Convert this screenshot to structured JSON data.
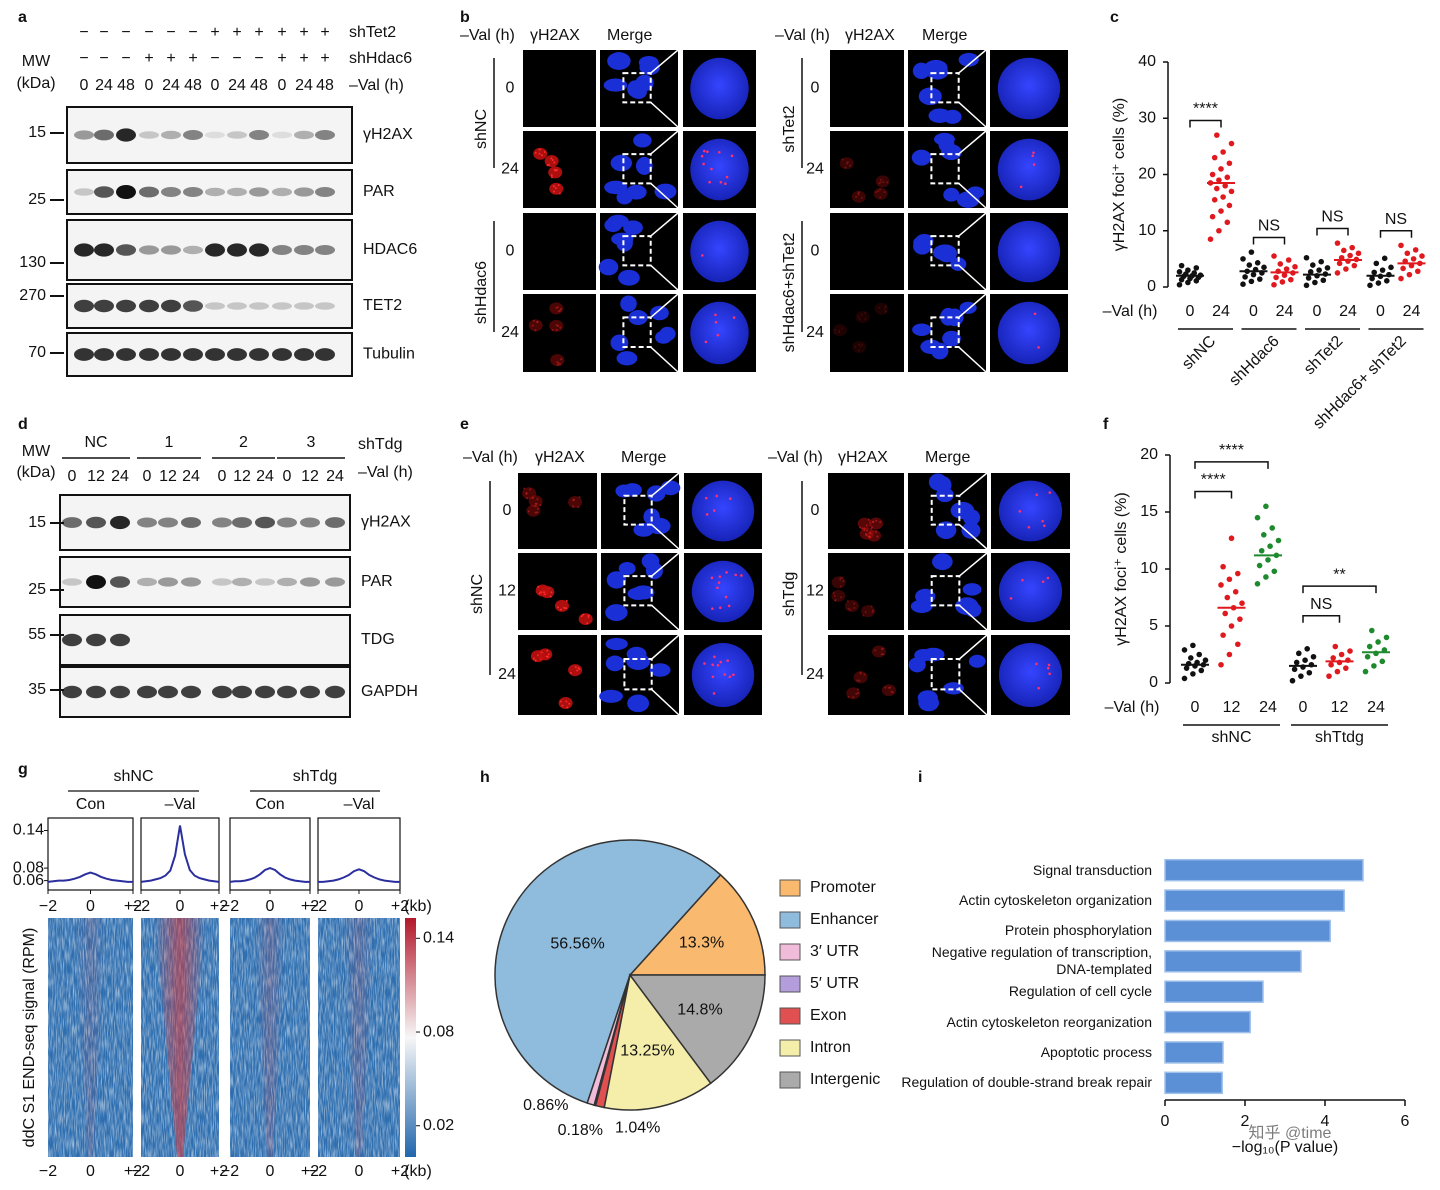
{
  "panel_labels": [
    "a",
    "b",
    "c",
    "d",
    "e",
    "f",
    "g",
    "h",
    "i"
  ],
  "blot_a": {
    "mw": "MW",
    "kda": "(kDa)",
    "rows": [
      {
        "label": "shTet2",
        "marks": [
          "−",
          "−",
          "−",
          "−",
          "−",
          "−",
          "+",
          "+",
          "+",
          "+",
          "+",
          "+"
        ]
      },
      {
        "label": "shHdac6",
        "marks": [
          "−",
          "−",
          "−",
          "+",
          "+",
          "+",
          "−",
          "−",
          "−",
          "+",
          "+",
          "+"
        ]
      },
      {
        "label": "–Val (h)",
        "marks": [
          "0",
          "24",
          "48",
          "0",
          "24",
          "48",
          "0",
          "24",
          "48",
          "0",
          "24",
          "48"
        ]
      }
    ],
    "bands": [
      {
        "name": "γH2AX",
        "mw": "15"
      },
      {
        "name": "PAR",
        "mw": "25"
      },
      {
        "name": "HDAC6",
        "mw": "130"
      },
      {
        "name": "TET2",
        "mw": "270"
      },
      {
        "name": "Tubulin",
        "mw": "70"
      }
    ]
  },
  "blot_d": {
    "mw": "MW",
    "kda": "(kDa)",
    "group_label": "shTdg",
    "groups": [
      "NC",
      "1",
      "2",
      "3"
    ],
    "time_label": "–Val (h)",
    "times": [
      "0",
      "12",
      "24",
      "0",
      "12",
      "24",
      "0",
      "12",
      "24",
      "0",
      "12",
      "24"
    ],
    "bands": [
      {
        "name": "γH2AX",
        "mw": "15"
      },
      {
        "name": "PAR",
        "mw": "25"
      },
      {
        "name": "TDG",
        "mw": "55"
      },
      {
        "name": "GAPDH",
        "mw": "35"
      }
    ]
  },
  "imaging_b": {
    "panels": [
      {
        "headers": [
          "–Val (h)",
          "γH2AX",
          "Merge"
        ],
        "groups": [
          {
            "label": "shNC",
            "times": [
              "0",
              "24"
            ]
          },
          {
            "label": "shHdac6",
            "times": [
              "0",
              "24"
            ]
          }
        ]
      },
      {
        "headers": [
          "–Val (h)",
          "γH2AX",
          "Merge"
        ],
        "groups": [
          {
            "label": "shTet2",
            "times": [
              "0",
              "24"
            ]
          },
          {
            "label": "shHdac6+shTet2",
            "times": [
              "0",
              "24"
            ]
          }
        ]
      }
    ]
  },
  "imaging_e": {
    "panels": [
      {
        "headers": [
          "–Val (h)",
          "γH2AX",
          "Merge"
        ],
        "groups": [
          {
            "label": "shNC",
            "times": [
              "0",
              "12",
              "24"
            ]
          }
        ]
      },
      {
        "headers": [
          "–Val (h)",
          "γH2AX",
          "Merge"
        ],
        "groups": [
          {
            "label": "shTdg",
            "times": [
              "0",
              "12",
              "24"
            ]
          }
        ]
      }
    ]
  },
  "chart_data": [
    {
      "type": "strip",
      "ylabel": "γH2AX foci⁺ cells (%)",
      "xlabel": "–Val (h)",
      "ylim": [
        0,
        40
      ],
      "yticks": [
        0,
        10,
        20,
        30,
        40
      ],
      "categories": [
        "shNC",
        "shHdac6",
        "shTet2",
        "shHdac6+ shTet2"
      ],
      "conditions": [
        "0",
        "24"
      ],
      "colors": [
        "#111111",
        "#e0191f"
      ],
      "means": [
        [
          2,
          18.5
        ],
        [
          2.8,
          2.6
        ],
        [
          2.2,
          4.8
        ],
        [
          2,
          4.2
        ]
      ],
      "points": [
        [
          [
            0.4,
            0.8,
            1.1,
            1.3,
            1.5,
            1.7,
            1.9,
            2.0,
            2.1,
            2.3,
            2.5,
            2.7,
            3.0,
            3.4,
            3.8
          ],
          [
            8.5,
            10,
            11.5,
            12.5,
            13.5,
            14.5,
            15.5,
            16,
            17,
            17.5,
            18,
            18.5,
            19,
            19.5,
            20,
            21,
            22,
            23,
            24,
            25.5,
            27
          ]
        ],
        [
          [
            0.5,
            1,
            1.4,
            1.8,
            2.2,
            2.5,
            2.8,
            3.1,
            3.5,
            3.9,
            4.3,
            5,
            6.2
          ],
          [
            0.4,
            0.9,
            1.3,
            1.7,
            2.1,
            2.5,
            2.8,
            3.2,
            3.6,
            4.1,
            4.8,
            5.5
          ]
        ],
        [
          [
            0.3,
            0.8,
            1.2,
            1.6,
            2,
            2.3,
            2.7,
            3,
            3.4,
            3.9,
            4.5,
            5.2
          ],
          [
            2.5,
            3.2,
            3.8,
            4.2,
            4.6,
            4.9,
            5.2,
            5.6,
            6,
            6.5,
            7,
            7.8
          ]
        ],
        [
          [
            0.3,
            0.7,
            1.1,
            1.5,
            1.9,
            2.2,
            2.6,
            3,
            3.5,
            4.2,
            5.1
          ],
          [
            1.5,
            2.2,
            2.8,
            3.3,
            3.8,
            4.2,
            4.6,
            5,
            5.5,
            6,
            6.6,
            7.4
          ]
        ]
      ],
      "annotations": [
        [
          "****"
        ],
        [
          "NS"
        ],
        [
          "NS"
        ],
        [
          "NS"
        ]
      ]
    },
    {
      "type": "strip",
      "ylabel": "γH2AX foci⁺ cells (%)",
      "xlabel": "–Val (h)",
      "ylim": [
        0,
        20
      ],
      "yticks": [
        0,
        5,
        10,
        15,
        20
      ],
      "categories": [
        "shNC",
        "shTtdg"
      ],
      "conditions": [
        "0",
        "12",
        "24"
      ],
      "colors": [
        "#111111",
        "#e0191f",
        "#1e8a2e"
      ],
      "means": [
        [
          1.6,
          6.6,
          11.2
        ],
        [
          1.5,
          1.9,
          2.7
        ]
      ],
      "points": [
        [
          [
            0.4,
            0.8,
            1.1,
            1.3,
            1.5,
            1.6,
            1.7,
            1.8,
            2.0,
            2.2,
            2.5,
            2.9,
            3.3
          ],
          [
            1.6,
            2.5,
            3.4,
            4.2,
            5,
            5.6,
            6.1,
            6.6,
            7,
            7.5,
            8,
            8.6,
            9.1,
            9.6,
            10.2,
            12.7
          ],
          [
            8.7,
            9.3,
            9.8,
            10.3,
            10.8,
            11.2,
            11.6,
            12,
            12.5,
            13,
            13.6,
            14.5,
            15.5
          ]
        ],
        [
          [
            0.2,
            0.6,
            0.9,
            1.2,
            1.4,
            1.6,
            1.8,
            2,
            2.3,
            2.6,
            3
          ],
          [
            0.6,
            1,
            1.3,
            1.6,
            1.8,
            2,
            2.2,
            2.5,
            2.8,
            3.2
          ],
          [
            1,
            1.5,
            1.9,
            2.3,
            2.6,
            2.9,
            3.2,
            3.6,
            4,
            4.6
          ]
        ]
      ],
      "annotations": [
        [
          "****",
          "****"
        ],
        [
          "NS",
          "**"
        ]
      ]
    },
    {
      "type": "line",
      "groups": [
        "shNC",
        "shTdg"
      ],
      "x": [
        -2,
        -1.75,
        -1.5,
        -1.25,
        -1,
        -0.75,
        -0.5,
        -0.25,
        0,
        0.25,
        0.5,
        0.75,
        1,
        1.25,
        1.5,
        1.75,
        2
      ],
      "xlim": [
        -2,
        2
      ],
      "xticks": [
        {
          "value": -2,
          "label": "−2"
        },
        0,
        {
          "value": 2,
          "label": "+2"
        }
      ],
      "xunit": "(kb)",
      "ylim": [
        0.045,
        0.16
      ],
      "yticks": [
        0.06,
        0.08,
        0.14
      ],
      "color": "#2b2f9e",
      "series": [
        {
          "name": "Con",
          "values": [
            0.058,
            0.059,
            0.06,
            0.06,
            0.061,
            0.063,
            0.066,
            0.07,
            0.073,
            0.07,
            0.066,
            0.063,
            0.061,
            0.06,
            0.059,
            0.058,
            0.058
          ]
        },
        {
          "name": "–Val",
          "values": [
            0.058,
            0.059,
            0.06,
            0.062,
            0.064,
            0.068,
            0.076,
            0.1,
            0.148,
            0.102,
            0.077,
            0.068,
            0.064,
            0.062,
            0.06,
            0.059,
            0.058
          ]
        },
        {
          "name": "Con",
          "values": [
            0.058,
            0.059,
            0.059,
            0.06,
            0.062,
            0.065,
            0.07,
            0.077,
            0.08,
            0.077,
            0.07,
            0.065,
            0.062,
            0.06,
            0.059,
            0.058,
            0.058
          ]
        },
        {
          "name": "–Val",
          "values": [
            0.058,
            0.058,
            0.059,
            0.06,
            0.062,
            0.065,
            0.069,
            0.075,
            0.078,
            0.075,
            0.069,
            0.065,
            0.062,
            0.06,
            0.059,
            0.058,
            0.058
          ]
        }
      ],
      "heatmap": {
        "ylabel": "ddC S1 END-seq signal (RPM)",
        "clim": [
          0,
          0.153
        ],
        "cticks": [
          0.02,
          0.08,
          0.14
        ]
      }
    },
    {
      "type": "pie",
      "categories": [
        "Promoter",
        "Enhancer",
        "3′ UTR",
        "5′ UTR",
        "Exon",
        "Intron",
        "Intergenic"
      ],
      "values": [
        13.3,
        56.56,
        0.86,
        0.18,
        1.04,
        13.25,
        14.8
      ],
      "value_labels": [
        "13.3%",
        "56.56%",
        "0.86%",
        "0.18%",
        "1.04%",
        "13.25%",
        "14.8%"
      ],
      "colors": [
        "#f9b96e",
        "#8fbcdc",
        "#f1bcd9",
        "#b39ddb",
        "#e05050",
        "#f5eeaa",
        "#aaaaaa"
      ]
    },
    {
      "type": "bar",
      "orientation": "horizontal",
      "categories": [
        "Signal transduction",
        "Actin cytoskeleton organization",
        "Protein phosphorylation",
        "Negative regulation of transcription, DNA-templated",
        "Regulation of cell cycle",
        "Actin cytoskeleton reorganization",
        "Apoptotic process",
        "Regulation of double-strand break repair"
      ],
      "values": [
        4.95,
        4.48,
        4.13,
        3.4,
        2.45,
        2.13,
        1.45,
        1.43
      ],
      "xlim": [
        0,
        6
      ],
      "xticks": [
        0,
        2,
        4,
        6
      ],
      "xlabel": "−log₁₀(P value)",
      "color": "#5b8fd6",
      "watermark": "知乎 @time"
    }
  ]
}
